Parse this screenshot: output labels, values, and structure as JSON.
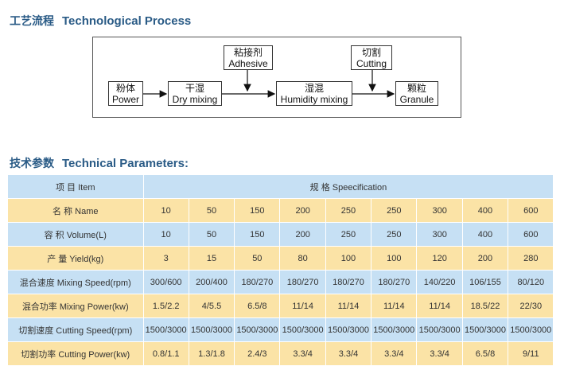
{
  "process": {
    "title_cn": "工艺流程",
    "title_en": "Technological Process",
    "steps": {
      "powder": [
        "粉体",
        "Power"
      ],
      "dry": [
        "干湿",
        "Dry mixing"
      ],
      "adhesive": [
        "粘接剂",
        "Adhesive"
      ],
      "humidity": [
        "湿混",
        "Humidity mixing"
      ],
      "cutting": [
        "切割",
        "Cutting"
      ],
      "granule": [
        "颗粒",
        "Granule"
      ]
    }
  },
  "parameters": {
    "title_cn": "技术参数",
    "title_en": "Technical Parameters:",
    "item_header": "项 目 Item",
    "spec_header": "规 格 Speecification",
    "rows": [
      {
        "label": "名 称 Name",
        "values": [
          "10",
          "50",
          "150",
          "200",
          "250",
          "250",
          "300",
          "400",
          "600"
        ]
      },
      {
        "label": "容 积 Volume(L)",
        "values": [
          "10",
          "50",
          "150",
          "200",
          "250",
          "250",
          "300",
          "400",
          "600"
        ]
      },
      {
        "label": "产 量 Yield(kg)",
        "values": [
          "3",
          "15",
          "50",
          "80",
          "100",
          "100",
          "120",
          "200",
          "280"
        ]
      },
      {
        "label": "混合速度 Mixing Speed(rpm)",
        "values": [
          "300/600",
          "200/400",
          "180/270",
          "180/270",
          "180/270",
          "180/270",
          "140/220",
          "106/155",
          "80/120"
        ]
      },
      {
        "label": "混合功率 Mixing Power(kw)",
        "values": [
          "1.5/2.2",
          "4/5.5",
          "6.5/8",
          "11/14",
          "11/14",
          "11/14",
          "11/14",
          "18.5/22",
          "22/30"
        ]
      },
      {
        "label": "切割速度 Cutting Speed(rpm)",
        "values": [
          "1500/3000",
          "1500/3000",
          "1500/3000",
          "1500/3000",
          "1500/3000",
          "1500/3000",
          "1500/3000",
          "1500/3000",
          "1500/3000"
        ]
      },
      {
        "label": "切割功率 Cutting Power(kw)",
        "values": [
          "0.8/1.1",
          "1.3/1.8",
          "2.4/3",
          "3.3/4",
          "3.3/4",
          "3.3/4",
          "3.3/4",
          "6.5/8",
          "9/11"
        ]
      }
    ]
  },
  "colors": {
    "title": "#2a5b86",
    "row_blue": "#c6e0f4",
    "row_yellow": "#fbe3a6"
  }
}
